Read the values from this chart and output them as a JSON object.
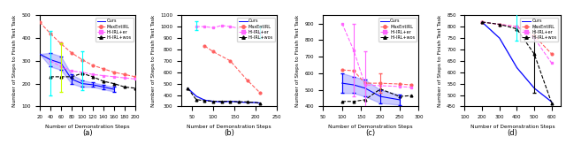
{
  "subplots": [
    {
      "label": "(a)",
      "xlim": [
        20,
        200
      ],
      "ylim": [
        100,
        500
      ],
      "xticks": [
        20,
        40,
        60,
        80,
        100,
        120,
        140,
        160,
        180,
        200
      ],
      "yticks": [
        100,
        200,
        300,
        400,
        500
      ],
      "series": [
        {
          "name": "Ours",
          "color": "blue",
          "linestyle": "-",
          "marker": null,
          "x": [
            20,
            40,
            60,
            80,
            100,
            120,
            140,
            160
          ],
          "y": [
            330,
            305,
            290,
            220,
            200,
            195,
            185,
            175
          ],
          "yerr_lo": [
            0,
            30,
            30,
            20,
            15,
            10,
            10,
            10
          ],
          "yerr_hi": [
            0,
            30,
            30,
            20,
            15,
            10,
            10,
            10
          ],
          "fill_alpha": 0.2,
          "eb_colors": [
            "blue",
            "blue",
            "blue",
            "blue",
            "blue",
            "blue",
            "blue",
            "blue"
          ]
        },
        {
          "name": "MaxEntIRL",
          "color": "#ff6060",
          "linestyle": "--",
          "marker": "o",
          "x": [
            20,
            40,
            60,
            80,
            100,
            120,
            140,
            160,
            180,
            200
          ],
          "y": [
            470,
            420,
            375,
            335,
            305,
            280,
            265,
            250,
            240,
            230
          ],
          "yerr_lo": [
            0,
            0,
            0,
            0,
            0,
            0,
            0,
            0,
            0,
            0
          ],
          "yerr_hi": [
            0,
            0,
            0,
            0,
            0,
            0,
            0,
            0,
            0,
            0
          ],
          "fill_alpha": 0,
          "eb_colors": []
        },
        {
          "name": "Hi-IRL+er",
          "color": "#ff66ff",
          "linestyle": "--",
          "marker": "s",
          "x": [
            20,
            40,
            60,
            80,
            100,
            120,
            140,
            160,
            180,
            200
          ],
          "y": [
            null,
            300,
            275,
            255,
            250,
            240,
            235,
            230,
            225,
            220
          ],
          "yerr_lo": [
            0,
            150,
            110,
            0,
            80,
            0,
            0,
            0,
            0,
            0
          ],
          "yerr_hi": [
            0,
            130,
            100,
            0,
            90,
            0,
            0,
            0,
            0,
            0
          ],
          "fill_alpha": 0,
          "eb_colors": [
            "#ccff00",
            "#00ffff",
            "#ccff00",
            "#00ffff",
            "#00ffff",
            "#00ffff",
            "#00ffff",
            "#00ffff",
            "#00ffff",
            "#00ffff"
          ]
        },
        {
          "name": "Hi-IRL+wos",
          "color": "black",
          "linestyle": "--",
          "marker": "^",
          "x": [
            40,
            60,
            80,
            100,
            120,
            140,
            160,
            180,
            200
          ],
          "y": [
            230,
            230,
            230,
            245,
            230,
            210,
            200,
            185,
            180
          ],
          "yerr_lo": [
            0,
            0,
            0,
            0,
            0,
            0,
            0,
            0,
            0
          ],
          "yerr_hi": [
            0,
            0,
            0,
            0,
            0,
            0,
            0,
            0,
            0
          ],
          "fill_alpha": 0,
          "eb_colors": []
        }
      ]
    },
    {
      "label": "(b)",
      "xlim": [
        25,
        250
      ],
      "ylim": [
        300,
        1100
      ],
      "xticks": [
        50,
        100,
        150,
        200,
        250
      ],
      "yticks": [
        300,
        400,
        500,
        600,
        700,
        800,
        900,
        1000,
        1100
      ],
      "series": [
        {
          "name": "Ours",
          "color": "blue",
          "linestyle": "-",
          "marker": null,
          "x": [
            40,
            60,
            80,
            100,
            120,
            140,
            160,
            180,
            200,
            210
          ],
          "y": [
            460,
            390,
            355,
            345,
            340,
            345,
            340,
            335,
            335,
            330
          ],
          "yerr_lo": [
            0,
            0,
            0,
            0,
            0,
            0,
            0,
            0,
            0,
            0
          ],
          "yerr_hi": [
            0,
            0,
            0,
            0,
            0,
            0,
            0,
            0,
            0,
            0
          ],
          "fill_alpha": 0.2,
          "eb_colors": []
        },
        {
          "name": "MaxEntIRL",
          "color": "#ff6060",
          "linestyle": "--",
          "marker": "o",
          "x": [
            40,
            60,
            80,
            100,
            120,
            140,
            160,
            180,
            210
          ],
          "y": [
            null,
            null,
            830,
            780,
            null,
            700,
            null,
            530,
            420
          ],
          "yerr_lo": [
            0,
            0,
            0,
            0,
            0,
            0,
            0,
            0,
            0
          ],
          "yerr_hi": [
            0,
            0,
            0,
            0,
            0,
            0,
            0,
            0,
            0
          ],
          "fill_alpha": 0,
          "eb_colors": []
        },
        {
          "name": "Hi-IRL+er",
          "color": "#ff66ff",
          "linestyle": "--",
          "marker": "s",
          "x": [
            40,
            60,
            80,
            100,
            120,
            140,
            160,
            180,
            210
          ],
          "y": [
            null,
            1000,
            1000,
            990,
            1010,
            1000,
            null,
            null,
            950
          ],
          "yerr_lo": [
            0,
            30,
            0,
            0,
            0,
            0,
            0,
            0,
            50
          ],
          "yerr_hi": [
            0,
            50,
            0,
            0,
            0,
            0,
            0,
            0,
            50
          ],
          "fill_alpha": 0,
          "eb_colors": [
            "#ccff00",
            "#00ffff",
            "#00ffff",
            "#00ffff",
            "#00ffff",
            "#00ffff",
            "#00ffff",
            "#00ffff",
            "#00ffff"
          ]
        },
        {
          "name": "Hi-IRL+wos",
          "color": "black",
          "linestyle": "--",
          "marker": "^",
          "x": [
            40,
            60,
            80,
            100,
            120,
            140,
            160,
            180,
            210
          ],
          "y": [
            460,
            360,
            350,
            345,
            345,
            345,
            340,
            340,
            330
          ],
          "yerr_lo": [
            0,
            0,
            0,
            0,
            0,
            0,
            0,
            0,
            0
          ],
          "yerr_hi": [
            0,
            0,
            0,
            0,
            0,
            0,
            0,
            0,
            0
          ],
          "fill_alpha": 0,
          "eb_colors": []
        }
      ]
    },
    {
      "label": "(c)",
      "xlim": [
        50,
        300
      ],
      "ylim": [
        400,
        950
      ],
      "xticks": [
        50,
        100,
        150,
        200,
        250,
        300
      ],
      "yticks": [
        400,
        500,
        600,
        700,
        800,
        900
      ],
      "series": [
        {
          "name": "Ours",
          "color": "blue",
          "linestyle": "-",
          "marker": null,
          "x": [
            100,
            130,
            160,
            200,
            250
          ],
          "y": [
            540,
            530,
            510,
            460,
            440
          ],
          "yerr_lo": [
            60,
            50,
            50,
            40,
            30
          ],
          "yerr_hi": [
            60,
            50,
            50,
            40,
            30
          ],
          "fill_alpha": 0.2,
          "eb_colors": [
            "blue",
            "blue",
            "blue",
            "blue",
            "blue"
          ]
        },
        {
          "name": "MaxEntIRL",
          "color": "#ff6060",
          "linestyle": "--",
          "marker": "o",
          "x": [
            100,
            130,
            160,
            200,
            250,
            280
          ],
          "y": [
            620,
            615,
            540,
            540,
            535,
            530
          ],
          "yerr_lo": [
            0,
            0,
            0,
            60,
            0,
            0
          ],
          "yerr_hi": [
            0,
            0,
            0,
            60,
            0,
            0
          ],
          "fill_alpha": 0,
          "eb_colors": [
            "#ff6060",
            "#ff6060",
            "#ff6060",
            "#ff6060",
            "#ff6060",
            "#ff6060"
          ]
        },
        {
          "name": "Hi-IRL+er",
          "color": "#ff66ff",
          "linestyle": "--",
          "marker": "s",
          "x": [
            100,
            130,
            160,
            200,
            250,
            280
          ],
          "y": [
            900,
            740,
            530,
            525,
            520,
            515
          ],
          "yerr_lo": [
            0,
            280,
            350,
            0,
            0,
            0
          ],
          "yerr_hi": [
            0,
            160,
            200,
            0,
            0,
            0
          ],
          "fill_alpha": 0,
          "eb_colors": [
            "#ff66ff",
            "#ff66ff",
            "#ff66ff",
            "#ff66ff",
            "#ff66ff",
            "#ff66ff"
          ]
        },
        {
          "name": "Hi-IRL+wos",
          "color": "black",
          "linestyle": "--",
          "marker": "^",
          "x": [
            100,
            130,
            160,
            200,
            250,
            280
          ],
          "y": [
            430,
            430,
            440,
            505,
            460,
            465
          ],
          "yerr_lo": [
            0,
            0,
            0,
            0,
            0,
            0
          ],
          "yerr_hi": [
            0,
            0,
            0,
            0,
            0,
            0
          ],
          "fill_alpha": 0,
          "eb_colors": []
        }
      ]
    },
    {
      "label": "(d)",
      "xlim": [
        100,
        650
      ],
      "ylim": [
        450,
        850
      ],
      "xticks": [
        100,
        200,
        300,
        400,
        500,
        600
      ],
      "yticks": [
        450,
        500,
        550,
        600,
        650,
        700,
        750,
        800,
        850
      ],
      "series": [
        {
          "name": "Ours",
          "color": "blue",
          "linestyle": "-",
          "marker": null,
          "x": [
            200,
            300,
            400,
            500,
            600
          ],
          "y": [
            820,
            750,
            620,
            530,
            470
          ],
          "yerr_lo": [
            0,
            0,
            0,
            0,
            0
          ],
          "yerr_hi": [
            0,
            0,
            0,
            0,
            0
          ],
          "fill_alpha": 0.2,
          "eb_colors": []
        },
        {
          "name": "MaxEntIRL",
          "color": "#ff6060",
          "linestyle": "--",
          "marker": "o",
          "x": [
            200,
            300,
            400,
            500,
            600
          ],
          "y": [
            820,
            810,
            800,
            760,
            680
          ],
          "yerr_lo": [
            0,
            0,
            0,
            0,
            0
          ],
          "yerr_hi": [
            0,
            0,
            0,
            0,
            0
          ],
          "fill_alpha": 0,
          "eb_colors": []
        },
        {
          "name": "Hi-IRL+er",
          "color": "#ff66ff",
          "linestyle": "--",
          "marker": "s",
          "x": [
            200,
            300,
            400,
            500,
            600
          ],
          "y": [
            820,
            810,
            800,
            750,
            640
          ],
          "yerr_lo": [
            0,
            0,
            60,
            0,
            0
          ],
          "yerr_hi": [
            0,
            0,
            70,
            0,
            0
          ],
          "fill_alpha": 0,
          "eb_colors": [
            "#00ffff",
            "#00ffff",
            "#00ffff",
            "#00ffff",
            "#00ffff"
          ]
        },
        {
          "name": "Hi-IRL+wos",
          "color": "black",
          "linestyle": "--",
          "marker": "^",
          "x": [
            200,
            300,
            400,
            500,
            600
          ],
          "y": [
            820,
            810,
            790,
            680,
            465
          ],
          "yerr_lo": [
            0,
            0,
            0,
            170,
            0
          ],
          "yerr_hi": [
            0,
            0,
            0,
            120,
            0
          ],
          "fill_alpha": 0,
          "eb_colors": [
            "black",
            "black",
            "black",
            "black",
            "black"
          ]
        }
      ]
    }
  ],
  "legend_entries": [
    "Ours",
    "MaxEntIRL",
    "Hi-IRL+er",
    "Hi-IRL+wos"
  ],
  "legend_colors": [
    "blue",
    "#ff6060",
    "#ff66ff",
    "black"
  ],
  "legend_linestyles": [
    "-",
    "--",
    "--",
    "--"
  ],
  "legend_markers": [
    null,
    "o",
    "s",
    "^"
  ],
  "xlabel": "Number of Demonstration Steps",
  "ylabel": "Number of Steps to Finish Test Task"
}
